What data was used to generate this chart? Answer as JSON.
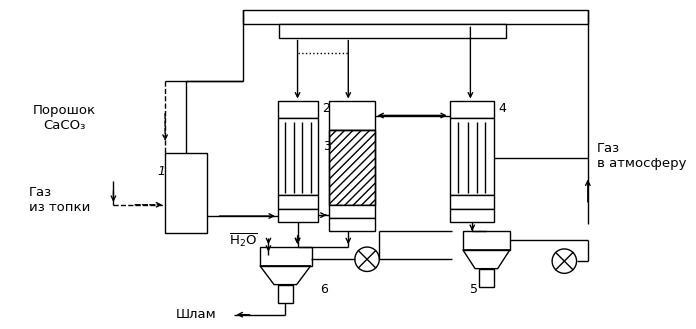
{
  "bg_color": "#ffffff",
  "line_color": "#000000",
  "figsize": [
    6.96,
    3.29
  ],
  "dpi": 100,
  "labels": {
    "poroshok": "Порошок\nCaCO₃",
    "gaz_iz_topki": "Газ\nиз топки",
    "gaz_v_atm": "Газ\nв атмосферу",
    "H2O": "H₂O",
    "shlam": "Шлам",
    "num1": "1",
    "num2": "2",
    "num3": "3",
    "num4": "4",
    "num5": "5",
    "num6": "6"
  }
}
